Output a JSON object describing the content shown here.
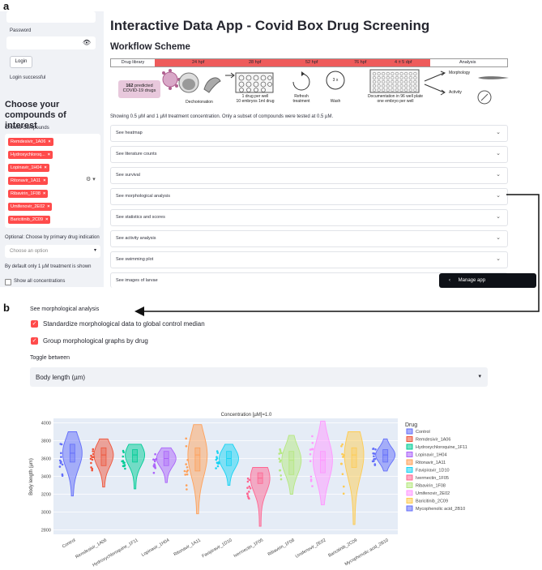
{
  "panels": {
    "a": "a",
    "b": "b"
  },
  "sidebar": {
    "password_label": "Password",
    "login_button": "Login",
    "login_status": "Login successful",
    "heading": "Choose your compounds of interest",
    "choose_label": "Choose Compounds",
    "chips": [
      "Remdesivir_1A06",
      "Hydroxychloroq...",
      "Lopinavir_1H04",
      "Ritonavir_1A11",
      "Ribavirin_1F08",
      "Umifenovir_2E02",
      "Baricitinib_2C09"
    ],
    "optional_label": "Optional: Choose by primary drug indication",
    "select_placeholder": "Choose an option",
    "default_note": "By default only 1 µM treatment is shown",
    "show_all": "Show all concentrations"
  },
  "main": {
    "title": "Interactive Data App - Covid Box Drug Screening",
    "workflow_title": "Workflow Scheme",
    "workflow": {
      "drug_library": "Drug library",
      "hpf24": "24 hpf",
      "hpf28": "28 hpf",
      "hpf52": "52 hpf",
      "hpf76": "76 hpf",
      "dpf4_5": "4 ± 5 dpf",
      "analysis": "Analysis",
      "predicted_num": "162",
      "predicted_text": "predicted",
      "predicted_text2": "COVID-19 drugs",
      "dechorionation": "Dechorionation",
      "step1a": "1 drug per well",
      "step1b": "10 embryos 1ml drug",
      "refresh1": "Refresh",
      "refresh2": "treatment",
      "wash_count": "3 x",
      "wash": "Wash",
      "doc1": "Documentation in 96 well plate",
      "doc2": "one embryo per well",
      "morphology": "Morphology",
      "activity": "Activity"
    },
    "note": "Showing 0.5 µM and 1 µM treatment concentration. Only a subset of compounds were tested at 0.5 µM.",
    "expanders": [
      "See heatmap",
      "See literature counts",
      "See survival",
      "See morphological analysis",
      "See statistics and scores",
      "See activity analysis",
      "See swimming plot",
      "See images of larvae"
    ],
    "manage_app": "Manage app"
  },
  "panel_b": {
    "heading": "See morphological analysis",
    "checkbox1": "Standardize morphological data to global control median",
    "checkbox2": "Group morphological graphs by drug",
    "toggle_label": "Toggle between",
    "toggle_value": "Body length (µm)"
  },
  "chart_data": {
    "type": "violin",
    "title": "Concentration [µM]=1.0",
    "ylabel": "Body length (µm)",
    "ylim": [
      2750,
      4050
    ],
    "yticks": [
      2800,
      3000,
      3200,
      3400,
      3600,
      3800,
      4000
    ],
    "legend_title": "Drug",
    "grid": true,
    "legend_position": "right",
    "categories": [
      "Control",
      "Remdesivir_1A06",
      "Hydroxychloroquine_1F11",
      "Lopinavir_1H04",
      "Ritonavir_1A11",
      "Favipiravir_1D10",
      "Ivermectin_1F05",
      "Ribavirin_1F08",
      "Umifenovir_2E02",
      "Baricitinib_2C09",
      "Mycophenolic acid_2B10"
    ],
    "series": [
      {
        "name": "Control",
        "color": "#636efa",
        "median": 3660,
        "q1": 3560,
        "q3": 3760,
        "min": 3180,
        "max": 3900
      },
      {
        "name": "Remdesivir_1A06",
        "color": "#ef553b",
        "median": 3640,
        "q1": 3520,
        "q3": 3720,
        "min": 3280,
        "max": 3820
      },
      {
        "name": "Hydroxychloroquine_1F11",
        "color": "#00cc96",
        "median": 3640,
        "q1": 3560,
        "q3": 3700,
        "min": 3260,
        "max": 3760
      },
      {
        "name": "Lopinavir_1H04",
        "color": "#ab63fa",
        "median": 3600,
        "q1": 3520,
        "q3": 3680,
        "min": 3330,
        "max": 3720
      },
      {
        "name": "Ritonavir_1A11",
        "color": "#ffa15a",
        "median": 3640,
        "q1": 3460,
        "q3": 3720,
        "min": 2980,
        "max": 3980
      },
      {
        "name": "Favipiravir_1D10",
        "color": "#19d3f3",
        "median": 3600,
        "q1": 3520,
        "q3": 3680,
        "min": 3300,
        "max": 3760
      },
      {
        "name": "Ivermectin_1F05",
        "color": "#ff6692",
        "median": 3380,
        "q1": 3320,
        "q3": 3440,
        "min": 2840,
        "max": 3500
      },
      {
        "name": "Ribavirin_1F08",
        "color": "#b6e880",
        "median": 3580,
        "q1": 3420,
        "q3": 3680,
        "min": 3200,
        "max": 3860
      },
      {
        "name": "Umifenovir_2E02",
        "color": "#ff97ff",
        "median": 3580,
        "q1": 3440,
        "q3": 3680,
        "min": 3080,
        "max": 4020
      },
      {
        "name": "Baricitinib_2C09",
        "color": "#fecb52",
        "median": 3640,
        "q1": 3500,
        "q3": 3720,
        "min": 2860,
        "max": 3900
      },
      {
        "name": "Mycophenolic acid_2B10",
        "color": "#636efa",
        "median": 3640,
        "q1": 3560,
        "q3": 3700,
        "min": 3460,
        "max": 3820
      }
    ]
  }
}
